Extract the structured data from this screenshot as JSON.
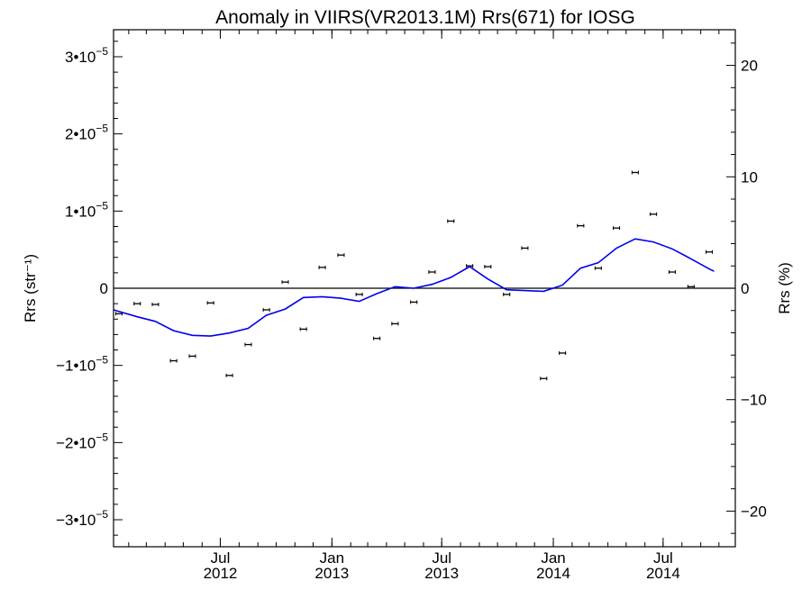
{
  "chart_data": {
    "type": "line",
    "title": "Anomaly in VIIRS(VR2013.1M) Rrs(671) for IOSG",
    "ylabel_left": "Rrs (str⁻¹)",
    "ylabel_right": "Rrs (%)",
    "xlabel": "",
    "x_ticks": [
      {
        "date": "2012-07-01",
        "month": "Jul",
        "year": "2012"
      },
      {
        "date": "2013-01-01",
        "month": "Jan",
        "year": "2013"
      },
      {
        "date": "2013-07-01",
        "month": "Jul",
        "year": "2013"
      },
      {
        "date": "2014-01-01",
        "month": "Jan",
        "year": "2014"
      },
      {
        "date": "2014-07-01",
        "month": "Jul",
        "year": "2014"
      }
    ],
    "xlim": [
      "2012-01-07",
      "2014-10-28"
    ],
    "ylim_left": [
      -3.35e-05,
      3.35e-05
    ],
    "ylim_right": [
      -23.2,
      23.2
    ],
    "left_ticks": [
      {
        "value": -3e-05,
        "mant": "−3",
        "exp": "−5"
      },
      {
        "value": -2e-05,
        "mant": "−2",
        "exp": "−5"
      },
      {
        "value": -1e-05,
        "mant": "−1",
        "exp": "−5"
      },
      {
        "value": 0,
        "mant": "0",
        "exp": ""
      },
      {
        "value": 1e-05,
        "mant": "1",
        "exp": "−5"
      },
      {
        "value": 2e-05,
        "mant": "2",
        "exp": "−5"
      },
      {
        "value": 3e-05,
        "mant": "3",
        "exp": "−5"
      }
    ],
    "right_ticks": [
      {
        "value": -20,
        "label": "−20"
      },
      {
        "value": -10,
        "label": "−10"
      },
      {
        "value": 0,
        "label": "0"
      },
      {
        "value": 10,
        "label": "10"
      },
      {
        "value": 20,
        "label": "20"
      }
    ],
    "zero_line": true,
    "series": [
      {
        "style": "points-with-error-bars",
        "color": "#000000",
        "points": [
          {
            "x": "2012-01-16",
            "y": -3.3e-06
          },
          {
            "x": "2012-02-15",
            "y": -2e-06
          },
          {
            "x": "2012-03-16",
            "y": -2.1e-06
          },
          {
            "x": "2012-04-15",
            "y": -9.4e-06
          },
          {
            "x": "2012-05-16",
            "y": -8.8e-06
          },
          {
            "x": "2012-06-15",
            "y": -1.9e-06
          },
          {
            "x": "2012-07-16",
            "y": -1.13e-05
          },
          {
            "x": "2012-08-16",
            "y": -7.3e-06
          },
          {
            "x": "2012-09-15",
            "y": -2.8e-06
          },
          {
            "x": "2012-10-16",
            "y": 8e-07
          },
          {
            "x": "2012-11-15",
            "y": -5.3e-06
          },
          {
            "x": "2012-12-16",
            "y": 2.7e-06
          },
          {
            "x": "2013-01-16",
            "y": 4.3e-06
          },
          {
            "x": "2013-02-15",
            "y": -8e-07
          },
          {
            "x": "2013-03-16",
            "y": -6.5e-06
          },
          {
            "x": "2013-04-15",
            "y": -4.6e-06
          },
          {
            "x": "2013-05-16",
            "y": -1.8e-06
          },
          {
            "x": "2013-06-15",
            "y": 2.1e-06
          },
          {
            "x": "2013-07-16",
            "y": 8.7e-06
          },
          {
            "x": "2013-08-16",
            "y": 2.9e-06
          },
          {
            "x": "2013-09-15",
            "y": 2.8e-06
          },
          {
            "x": "2013-10-16",
            "y": -8e-07
          },
          {
            "x": "2013-11-15",
            "y": 5.2e-06
          },
          {
            "x": "2013-12-16",
            "y": -1.17e-05
          },
          {
            "x": "2014-01-16",
            "y": -8.4e-06
          },
          {
            "x": "2014-02-15",
            "y": 8.1e-06
          },
          {
            "x": "2014-03-16",
            "y": 2.6e-06
          },
          {
            "x": "2014-04-15",
            "y": 7.8e-06
          },
          {
            "x": "2014-05-16",
            "y": 1.5e-05
          },
          {
            "x": "2014-06-15",
            "y": 9.6e-06
          },
          {
            "x": "2014-07-16",
            "y": 2.1e-06
          },
          {
            "x": "2014-08-16",
            "y": 2e-07
          },
          {
            "x": "2014-09-15",
            "y": 4.7e-06
          }
        ]
      },
      {
        "style": "line",
        "color": "#0000ee",
        "points": [
          {
            "x": "2012-01-07",
            "y": -2.8e-06
          },
          {
            "x": "2012-02-15",
            "y": -3.7e-06
          },
          {
            "x": "2012-03-16",
            "y": -4.3e-06
          },
          {
            "x": "2012-04-15",
            "y": -5.5e-06
          },
          {
            "x": "2012-05-16",
            "y": -6.1e-06
          },
          {
            "x": "2012-06-15",
            "y": -6.2e-06
          },
          {
            "x": "2012-07-16",
            "y": -5.8e-06
          },
          {
            "x": "2012-08-16",
            "y": -5.2e-06
          },
          {
            "x": "2012-09-15",
            "y": -3.5e-06
          },
          {
            "x": "2012-10-16",
            "y": -2.7e-06
          },
          {
            "x": "2012-11-15",
            "y": -1.2e-06
          },
          {
            "x": "2012-12-16",
            "y": -1.1e-06
          },
          {
            "x": "2013-01-16",
            "y": -1.3e-06
          },
          {
            "x": "2013-02-15",
            "y": -1.7e-06
          },
          {
            "x": "2013-03-16",
            "y": -7e-07
          },
          {
            "x": "2013-04-15",
            "y": 2e-07
          },
          {
            "x": "2013-05-16",
            "y": 0.0
          },
          {
            "x": "2013-06-15",
            "y": 5e-07
          },
          {
            "x": "2013-07-16",
            "y": 1.4e-06
          },
          {
            "x": "2013-08-16",
            "y": 2.8e-06
          },
          {
            "x": "2013-09-15",
            "y": 1.2e-06
          },
          {
            "x": "2013-10-16",
            "y": -2e-07
          },
          {
            "x": "2013-11-15",
            "y": -3e-07
          },
          {
            "x": "2013-12-16",
            "y": -4e-07
          },
          {
            "x": "2014-01-16",
            "y": 4e-07
          },
          {
            "x": "2014-02-15",
            "y": 2.6e-06
          },
          {
            "x": "2014-03-16",
            "y": 3.3e-06
          },
          {
            "x": "2014-04-15",
            "y": 5.2e-06
          },
          {
            "x": "2014-05-16",
            "y": 6.4e-06
          },
          {
            "x": "2014-06-15",
            "y": 6e-06
          },
          {
            "x": "2014-07-16",
            "y": 5.1e-06
          },
          {
            "x": "2014-08-16",
            "y": 3.8e-06
          },
          {
            "x": "2014-09-15",
            "y": 2.5e-06
          },
          {
            "x": "2014-09-23",
            "y": 2.2e-06
          }
        ]
      }
    ]
  }
}
